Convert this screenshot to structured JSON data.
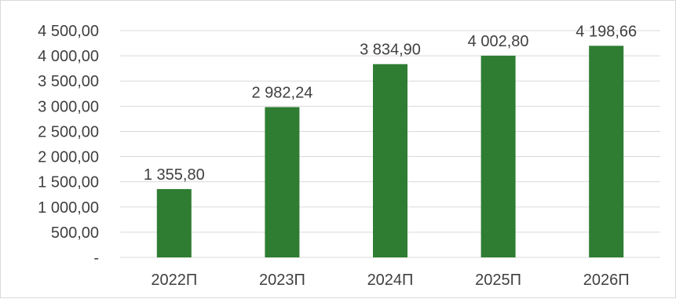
{
  "chart_data": {
    "type": "bar",
    "title": "",
    "xlabel": "",
    "ylabel": "",
    "categories": [
      "2022П",
      "2023П",
      "2024П",
      "2025П",
      "2026П"
    ],
    "values": [
      1355.8,
      2982.24,
      3834.9,
      4002.8,
      4198.66
    ],
    "data_labels": [
      "1 355,80",
      "2 982,24",
      "3 834,90",
      "4 002,80",
      "4 198,66"
    ],
    "ylim": [
      0,
      4500
    ],
    "yticks": [
      0,
      500,
      1000,
      1500,
      2000,
      2500,
      3000,
      3500,
      4000,
      4500
    ],
    "ytick_labels": [
      "-",
      "500,00",
      "1 000,00",
      "1 500,00",
      "2 000,00",
      "2 500,00",
      "3 000,00",
      "3 500,00",
      "4 000,00",
      "4 500,00"
    ],
    "grid": true,
    "legend": "none",
    "colors": {
      "bar": "#2e7d32",
      "grid": "#d9d9d9",
      "text": "#404040"
    }
  }
}
